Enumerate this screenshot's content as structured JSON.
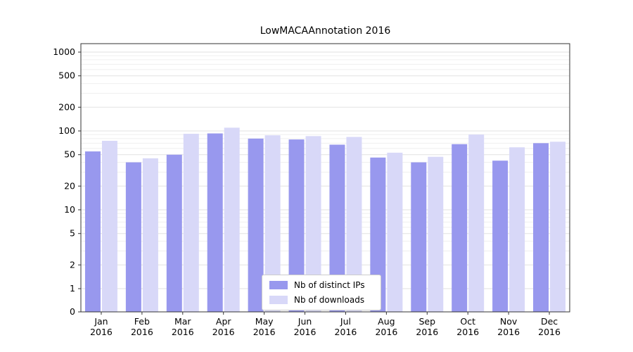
{
  "chart_data": {
    "type": "bar",
    "title": "LowMACAAnnotation 2016",
    "categories": [
      "Jan",
      "Feb",
      "Mar",
      "Apr",
      "May",
      "Jun",
      "Jul",
      "Aug",
      "Sep",
      "Oct",
      "Nov",
      "Dec"
    ],
    "category_year": "2016",
    "series": [
      {
        "name": "Nb of distinct IPs",
        "color": "#9898ee",
        "values": [
          55,
          40,
          50,
          93,
          80,
          78,
          67,
          46,
          40,
          68,
          42,
          70
        ]
      },
      {
        "name": "Nb of downloads",
        "color": "#d8d8f8",
        "values": [
          75,
          45,
          92,
          110,
          88,
          86,
          84,
          53,
          47,
          90,
          62,
          73
        ]
      }
    ],
    "y_ticks": [
      0,
      1,
      2,
      5,
      10,
      20,
      50,
      100,
      200,
      500,
      1000
    ],
    "y_scale": "log",
    "ylim": [
      0,
      1000
    ],
    "grid": true,
    "legend_position": "lower center"
  }
}
